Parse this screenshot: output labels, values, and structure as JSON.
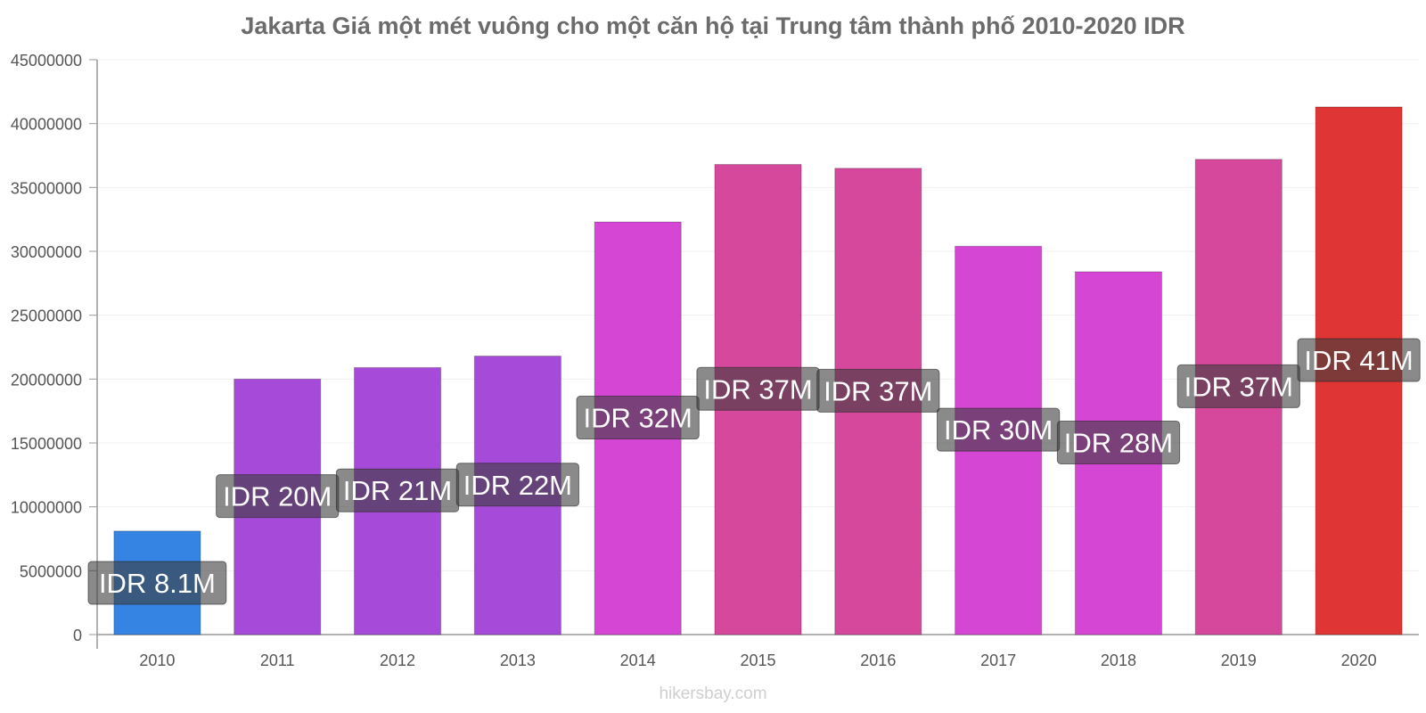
{
  "chart_data": {
    "type": "bar",
    "title": "Jakarta Giá một mét vuông cho một căn hộ tại Trung tâm thành phố 2010-2020 IDR",
    "xlabel": "",
    "ylabel": "",
    "categories": [
      "2010",
      "2011",
      "2012",
      "2013",
      "2014",
      "2015",
      "2016",
      "2017",
      "2018",
      "2019",
      "2020"
    ],
    "values": [
      8100000,
      20000000,
      20900000,
      21800000,
      32300000,
      36800000,
      36500000,
      30400000,
      28400000,
      37200000,
      41300000
    ],
    "data_labels": [
      "IDR 8.1M",
      "IDR 20M",
      "IDR 21M",
      "IDR 22M",
      "IDR 32M",
      "IDR 37M",
      "IDR 37M",
      "IDR 30M",
      "IDR 28M",
      "IDR 37M",
      "IDR 41M"
    ],
    "bar_colors": [
      "#3584e4",
      "#a64bd9",
      "#a64bd9",
      "#a64bd9",
      "#d646d4",
      "#d6489c",
      "#d6489c",
      "#d646d4",
      "#d646d4",
      "#d6489c",
      "#e03535"
    ],
    "ylim": [
      0,
      45000000
    ],
    "yticks": [
      0,
      5000000,
      10000000,
      15000000,
      20000000,
      25000000,
      30000000,
      35000000,
      40000000,
      45000000
    ],
    "grid": true,
    "legend": "none"
  },
  "watermark": "hikersbay.com"
}
